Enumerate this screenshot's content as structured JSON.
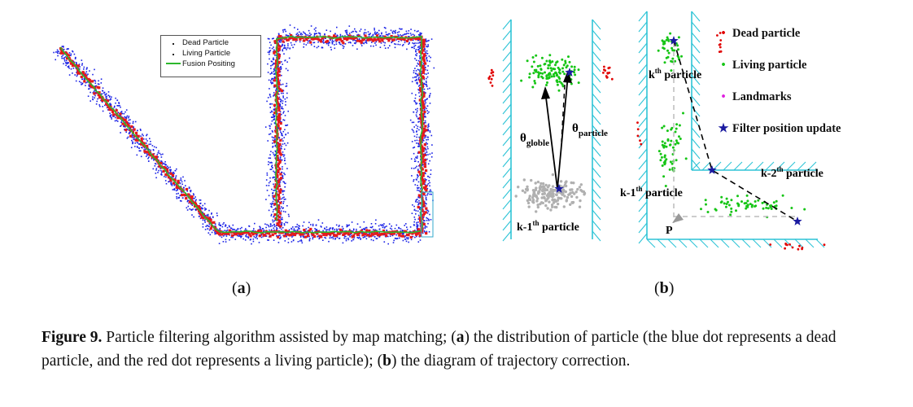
{
  "panel_a": {
    "legend": [
      {
        "label": "Dead Particle",
        "marker": "dot"
      },
      {
        "label": "Living Particle",
        "marker": "dot"
      },
      {
        "label": "Fusion Positing",
        "marker": "line"
      }
    ],
    "colors": {
      "dead": "#1a22e6",
      "living": "#e61a1a",
      "fusion": "#2db82d",
      "box": "#33aacc"
    }
  },
  "panel_b": {
    "legend": [
      {
        "label": "Dead particle",
        "symbol": "•",
        "color": "#e00000"
      },
      {
        "label": "Living particle",
        "symbol": "•",
        "color": "#16c516"
      },
      {
        "label": "Landmarks",
        "symbol": "•",
        "color": "#e020e0"
      },
      {
        "label": "Filter position update",
        "symbol": "★",
        "color": "#1a1aa0"
      }
    ],
    "labels": {
      "theta_globle_base": "θ",
      "theta_globle_sub": "globle",
      "theta_particle_base": "θ",
      "theta_particle_sub": "particle",
      "k1_left_pre": "k-1",
      "k1_left_sup": "th",
      "k1_left_post": " particle",
      "k_pre": "k",
      "k_sup": "th",
      "k_post": " particle",
      "k2_pre": "k-2",
      "k2_sup": "th",
      "k2_post": " particle",
      "k1_right_pre": "k-1",
      "k1_right_sup": "th",
      "k1_right_post": " particle",
      "p": "P"
    },
    "colors": {
      "wall": "#2ec4d6",
      "dead": "#e00000",
      "living": "#16c516",
      "gray": "#b0b0b0",
      "star": "#1a1aa0"
    }
  },
  "sublabels": {
    "a_open": "(",
    "a": "a",
    "a_close": ")",
    "b_open": "(",
    "b": "b",
    "b_close": ")"
  },
  "caption": {
    "figure": "Figure 9.",
    "t1": " Particle filtering algorithm assisted by map matching; (",
    "a": "a",
    "t2": ") the distribution of particle (the blue dot represents a dead particle, and the red dot represents a living particle); (",
    "b": "b",
    "t3": ") the diagram of trajectory correction."
  }
}
